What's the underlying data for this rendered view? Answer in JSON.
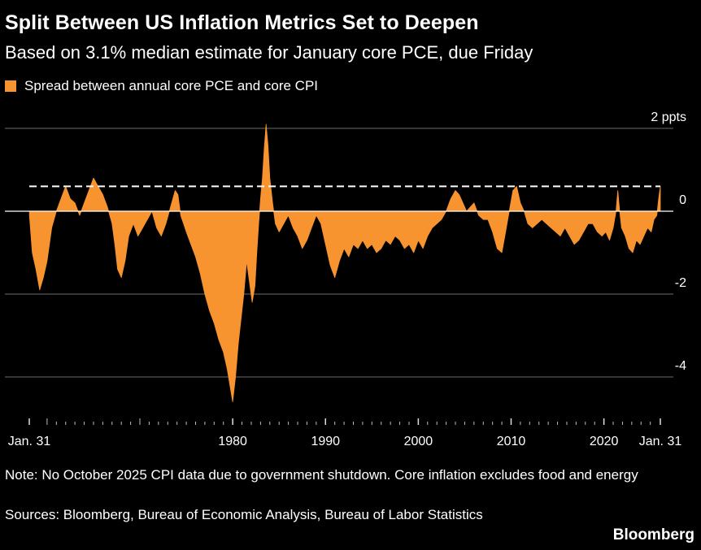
{
  "title": "Split Between US Inflation Metrics Set to Deepen",
  "subtitle": "Based on 3.1% median estimate for January core PCE, due Friday",
  "note": "Note: No October 2025 CPI data due to government shutdown. Core inflation excludes food and energy",
  "sources": "Sources: Bloomberg, Bureau of Economic Analysis, Bureau of Labor Statistics",
  "brand": "Bloomberg",
  "colors": {
    "series": "#F79430",
    "background": "#000000",
    "grid": "#6b6b6b",
    "text": "#ffffff"
  },
  "chart_data": {
    "type": "area",
    "ylim": [
      -4.6,
      2.1
    ],
    "yticks": [
      {
        "value": 2,
        "label": "2 ppts"
      },
      {
        "value": 0,
        "label": "0"
      },
      {
        "value": -2,
        "label": "-2"
      },
      {
        "value": -4,
        "label": "-4"
      }
    ],
    "xlim": [
      1958.08,
      2026.08
    ],
    "xticks": [
      {
        "value": 1958.08,
        "label": "Jan. 31"
      },
      {
        "value": 1980,
        "label": "1980"
      },
      {
        "value": 1990,
        "label": "1990"
      },
      {
        "value": 2000,
        "label": "2000"
      },
      {
        "value": 2010,
        "label": "2010"
      },
      {
        "value": 2020,
        "label": "2020"
      },
      {
        "value": 2026.08,
        "label": "Jan. 31"
      }
    ],
    "reference_line": {
      "value": 0.6,
      "style": "dashed"
    },
    "grid": true,
    "legend_position": "top-left",
    "series": [
      {
        "name": "Spread between annual core PCE and core CPI",
        "points": [
          [
            1958.1,
            -0.1
          ],
          [
            1958.4,
            -1.0
          ],
          [
            1958.8,
            -1.4
          ],
          [
            1959.2,
            -1.9
          ],
          [
            1959.6,
            -1.6
          ],
          [
            1960.0,
            -1.2
          ],
          [
            1960.5,
            -0.4
          ],
          [
            1961.0,
            0.0
          ],
          [
            1961.5,
            0.3
          ],
          [
            1962.0,
            0.6
          ],
          [
            1962.5,
            0.3
          ],
          [
            1963.0,
            0.2
          ],
          [
            1963.5,
            -0.1
          ],
          [
            1964.0,
            0.2
          ],
          [
            1964.5,
            0.5
          ],
          [
            1965.0,
            0.8
          ],
          [
            1965.5,
            0.6
          ],
          [
            1966.0,
            0.4
          ],
          [
            1966.5,
            0.1
          ],
          [
            1967.0,
            -0.3
          ],
          [
            1967.3,
            -0.8
          ],
          [
            1967.6,
            -1.4
          ],
          [
            1968.0,
            -1.6
          ],
          [
            1968.4,
            -1.2
          ],
          [
            1968.8,
            -0.6
          ],
          [
            1969.3,
            -0.3
          ],
          [
            1969.8,
            -0.6
          ],
          [
            1970.3,
            -0.4
          ],
          [
            1970.8,
            -0.2
          ],
          [
            1971.3,
            0.0
          ],
          [
            1971.8,
            -0.4
          ],
          [
            1972.3,
            -0.6
          ],
          [
            1972.8,
            -0.3
          ],
          [
            1973.3,
            0.1
          ],
          [
            1973.8,
            0.5
          ],
          [
            1974.1,
            0.4
          ],
          [
            1974.4,
            -0.1
          ],
          [
            1974.7,
            -0.3
          ],
          [
            1975.0,
            -0.5
          ],
          [
            1975.5,
            -0.8
          ],
          [
            1976.0,
            -1.1
          ],
          [
            1976.5,
            -1.5
          ],
          [
            1977.0,
            -2.0
          ],
          [
            1977.5,
            -2.4
          ],
          [
            1978.0,
            -2.7
          ],
          [
            1978.5,
            -3.1
          ],
          [
            1979.0,
            -3.4
          ],
          [
            1979.4,
            -3.8
          ],
          [
            1979.7,
            -4.2
          ],
          [
            1980.0,
            -4.6
          ],
          [
            1980.3,
            -4.0
          ],
          [
            1980.6,
            -3.2
          ],
          [
            1980.9,
            -2.6
          ],
          [
            1981.2,
            -2.0
          ],
          [
            1981.5,
            -1.2
          ],
          [
            1981.8,
            -1.7
          ],
          [
            1982.1,
            -2.2
          ],
          [
            1982.4,
            -1.8
          ],
          [
            1982.6,
            -1.0
          ],
          [
            1982.8,
            -0.3
          ],
          [
            1983.0,
            0.3
          ],
          [
            1983.2,
            0.8
          ],
          [
            1983.4,
            1.5
          ],
          [
            1983.6,
            2.1
          ],
          [
            1983.8,
            1.6
          ],
          [
            1984.0,
            0.8
          ],
          [
            1984.3,
            0.2
          ],
          [
            1984.6,
            -0.3
          ],
          [
            1985.0,
            -0.5
          ],
          [
            1985.5,
            -0.3
          ],
          [
            1986.0,
            -0.1
          ],
          [
            1986.5,
            -0.4
          ],
          [
            1987.0,
            -0.6
          ],
          [
            1987.5,
            -0.9
          ],
          [
            1988.0,
            -0.7
          ],
          [
            1988.5,
            -0.4
          ],
          [
            1989.0,
            -0.1
          ],
          [
            1989.5,
            -0.3
          ],
          [
            1990.0,
            -0.8
          ],
          [
            1990.5,
            -1.3
          ],
          [
            1991.0,
            -1.6
          ],
          [
            1991.5,
            -1.2
          ],
          [
            1992.0,
            -0.9
          ],
          [
            1992.5,
            -1.1
          ],
          [
            1993.0,
            -0.8
          ],
          [
            1993.5,
            -0.9
          ],
          [
            1994.0,
            -0.7
          ],
          [
            1994.5,
            -0.9
          ],
          [
            1995.0,
            -0.8
          ],
          [
            1995.5,
            -1.0
          ],
          [
            1996.0,
            -0.9
          ],
          [
            1996.5,
            -0.7
          ],
          [
            1997.0,
            -0.8
          ],
          [
            1997.5,
            -0.6
          ],
          [
            1998.0,
            -0.7
          ],
          [
            1998.5,
            -0.9
          ],
          [
            1999.0,
            -0.8
          ],
          [
            1999.5,
            -1.0
          ],
          [
            2000.0,
            -0.7
          ],
          [
            2000.5,
            -0.9
          ],
          [
            2001.0,
            -0.6
          ],
          [
            2001.5,
            -0.4
          ],
          [
            2002.0,
            -0.3
          ],
          [
            2002.5,
            -0.2
          ],
          [
            2003.0,
            0.0
          ],
          [
            2003.5,
            0.3
          ],
          [
            2004.0,
            0.5
          ],
          [
            2004.4,
            0.4
          ],
          [
            2004.8,
            0.2
          ],
          [
            2005.2,
            0.0
          ],
          [
            2005.6,
            0.1
          ],
          [
            2006.0,
            0.2
          ],
          [
            2006.5,
            -0.1
          ],
          [
            2007.0,
            -0.2
          ],
          [
            2007.5,
            -0.2
          ],
          [
            2008.0,
            -0.5
          ],
          [
            2008.5,
            -0.9
          ],
          [
            2009.0,
            -1.0
          ],
          [
            2009.4,
            -0.5
          ],
          [
            2009.8,
            0.0
          ],
          [
            2010.2,
            0.5
          ],
          [
            2010.6,
            0.6
          ],
          [
            2011.0,
            0.2
          ],
          [
            2011.4,
            0.0
          ],
          [
            2011.8,
            -0.3
          ],
          [
            2012.3,
            -0.4
          ],
          [
            2012.8,
            -0.3
          ],
          [
            2013.3,
            -0.2
          ],
          [
            2013.8,
            -0.3
          ],
          [
            2014.3,
            -0.4
          ],
          [
            2014.8,
            -0.5
          ],
          [
            2015.3,
            -0.6
          ],
          [
            2015.8,
            -0.4
          ],
          [
            2016.3,
            -0.6
          ],
          [
            2016.8,
            -0.8
          ],
          [
            2017.3,
            -0.7
          ],
          [
            2017.8,
            -0.5
          ],
          [
            2018.3,
            -0.3
          ],
          [
            2018.8,
            -0.3
          ],
          [
            2019.3,
            -0.5
          ],
          [
            2019.8,
            -0.6
          ],
          [
            2020.2,
            -0.5
          ],
          [
            2020.6,
            -0.7
          ],
          [
            2021.0,
            -0.4
          ],
          [
            2021.3,
            0.0
          ],
          [
            2021.5,
            0.5
          ],
          [
            2021.7,
            0.0
          ],
          [
            2021.9,
            -0.4
          ],
          [
            2022.3,
            -0.6
          ],
          [
            2022.7,
            -0.9
          ],
          [
            2023.1,
            -1.0
          ],
          [
            2023.5,
            -0.7
          ],
          [
            2023.9,
            -0.8
          ],
          [
            2024.3,
            -0.6
          ],
          [
            2024.7,
            -0.4
          ],
          [
            2025.1,
            -0.5
          ],
          [
            2025.4,
            -0.2
          ],
          [
            2025.7,
            -0.1
          ],
          [
            2025.9,
            0.3
          ],
          [
            2026.08,
            0.6
          ]
        ]
      }
    ]
  }
}
